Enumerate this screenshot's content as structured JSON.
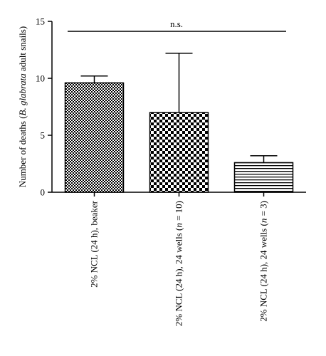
{
  "chart_data": {
    "type": "bar",
    "ylabel_parts": {
      "prefix": "Number of deaths (",
      "species": "B. glabrata",
      "suffix": " adult snails)"
    },
    "ylim": [
      0,
      15
    ],
    "yticks": [
      "0",
      "5",
      "10",
      "15"
    ],
    "grid": false,
    "categories": [
      {
        "name": "2% NCL (24 h), beaker",
        "label_parts": [
          {
            "text": "2% NCL (24 h), beaker",
            "italic": false
          }
        ]
      },
      {
        "name": "2% NCL (24 h), 24 wells (n = 10)",
        "label_parts": [
          {
            "text": "2% NCL (24 h), 24 wells (",
            "italic": false
          },
          {
            "text": "n",
            "italic": true
          },
          {
            "text": " = 10)",
            "italic": false
          }
        ]
      },
      {
        "name": "2% NCL (24 h), 24 wells (n = 3)",
        "label_parts": [
          {
            "text": "2% NCL (24 h), 24 wells (",
            "italic": false
          },
          {
            "text": "n",
            "italic": true
          },
          {
            "text": " = 3)",
            "italic": false
          }
        ]
      }
    ],
    "values": [
      9.6,
      7.0,
      2.6
    ],
    "error_upper": [
      10.2,
      12.2,
      3.2
    ],
    "patterns": [
      "fine-checker",
      "coarse-checker",
      "horizontal-lines"
    ],
    "annotation": "n.s."
  }
}
